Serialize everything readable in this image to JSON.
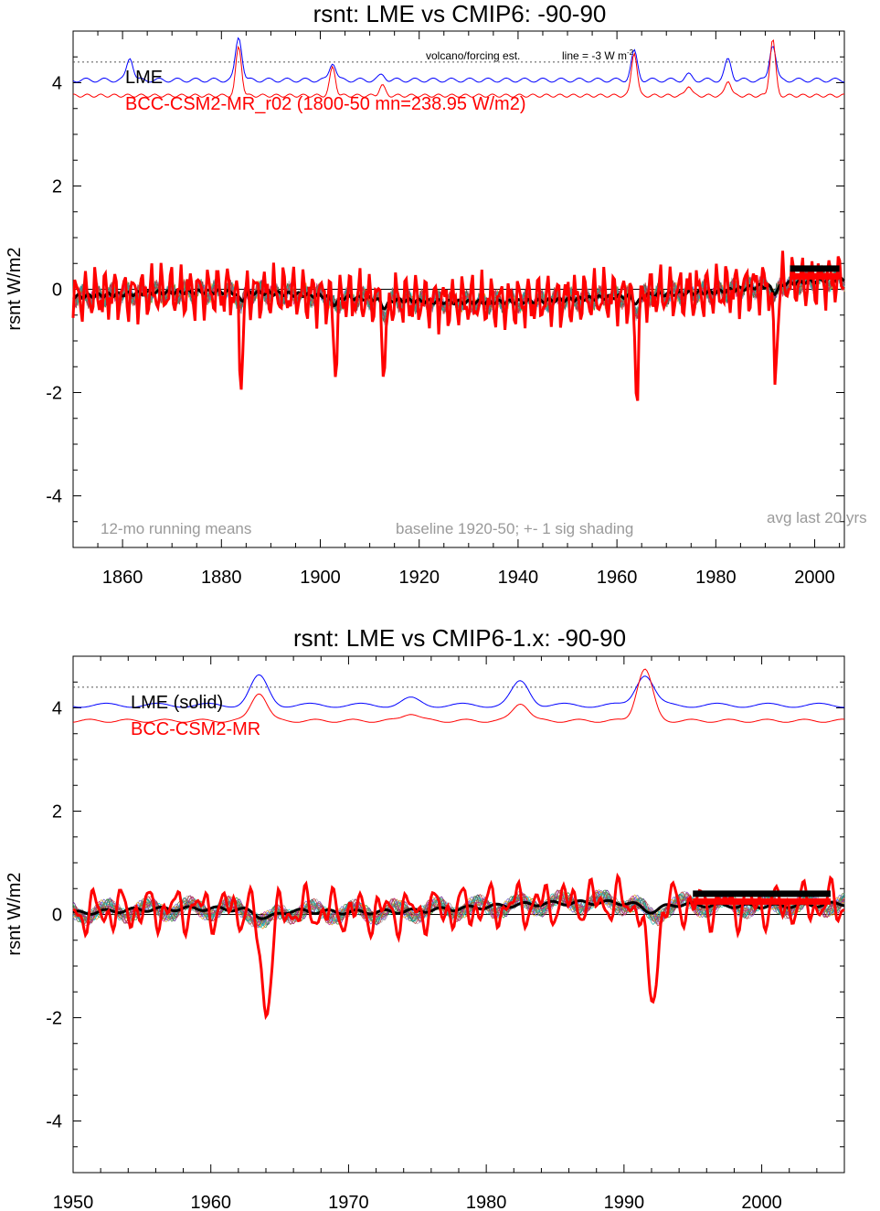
{
  "chart_data": [
    {
      "type": "line",
      "title": "rsnt: LME vs CMIP6: -90-90",
      "ylabel": "rsnt W/m2",
      "xlim": [
        1850,
        2006
      ],
      "ylim": [
        -5,
        5
      ],
      "x_ticks": [
        1860,
        1880,
        1900,
        1920,
        1940,
        1960,
        1980,
        2000
      ],
      "y_ticks": [
        -4,
        -2,
        0,
        2,
        4
      ],
      "legend": [
        {
          "text": "LME",
          "color": "#000000"
        },
        {
          "text": "BCC-CSM2-MR_r02 (1800-50 mn=238.95 W/m2)",
          "color": "#ff0000"
        }
      ],
      "annotations": {
        "volcano": "volcano/forcing est.",
        "line": "line = -3 W m",
        "line_sup": "-2",
        "running_mean": "12-mo running means",
        "baseline": "baseline 1920-50; +- 1 sig shading",
        "avg": "avg last 20 yrs"
      },
      "reference_line_y": 4.4,
      "lme_mean_color": "#000000",
      "model_color": "#ff0000",
      "forcing_lme_color": "#0000ff",
      "forcing_model_color": "#ff0000",
      "volcano_events": [
        {
          "year": 1861.5,
          "lme": 0.45,
          "model": 0.0
        },
        {
          "year": 1883.5,
          "lme": 0.85,
          "model": 0.95
        },
        {
          "year": 1902.5,
          "lme": 0.35,
          "model": 0.55
        },
        {
          "year": 1912.5,
          "lme": 0.1,
          "model": 0.2
        },
        {
          "year": 1963.5,
          "lme": 0.55,
          "model": 0.85
        },
        {
          "year": 1974.5,
          "lme": 0.1,
          "model": 0.2
        },
        {
          "year": 1982.5,
          "lme": 0.4,
          "model": 0.3
        },
        {
          "year": 1991.5,
          "lme": 0.7,
          "model": 1.1
        }
      ],
      "model_dips": [
        {
          "year": 1884,
          "depth": -1.55
        },
        {
          "year": 1903,
          "depth": -1.3
        },
        {
          "year": 1913,
          "depth": -1.35
        },
        {
          "year": 1964,
          "depth": -1.7
        },
        {
          "year": 1992,
          "depth": -1.8
        }
      ],
      "avg_last20": {
        "lme": 0.4,
        "model": 0.25,
        "x_start": 1995,
        "x_end": 2005
      }
    },
    {
      "type": "line",
      "title": "rsnt: LME vs CMIP6-1.x: -90-90",
      "ylabel": "rsnt W/m2",
      "xlim": [
        1950,
        2006
      ],
      "ylim": [
        -5,
        5
      ],
      "x_ticks": [
        1950,
        1960,
        1970,
        1980,
        1990,
        2000
      ],
      "y_ticks": [
        -4,
        -2,
        0,
        2,
        4
      ],
      "legend": [
        {
          "text": "LME (solid)",
          "color": "#000000"
        },
        {
          "text": "BCC-CSM2-MR",
          "color": "#ff0000"
        }
      ],
      "reference_line_y": 4.4,
      "volcano_events": [
        {
          "year": 1963.5,
          "lme": 0.55,
          "model": 0.55
        },
        {
          "year": 1974.5,
          "lme": 0.12,
          "model": 0.15
        },
        {
          "year": 1982.5,
          "lme": 0.45,
          "model": 0.35
        },
        {
          "year": 1991.5,
          "lme": 0.6,
          "model": 1.0
        }
      ],
      "model_dips": [
        {
          "year": 1964,
          "depth": -1.8
        },
        {
          "year": 1992,
          "depth": -1.85
        }
      ],
      "avg_last20": {
        "lme": 0.4,
        "model": 0.25,
        "x_start": 1995,
        "x_end": 2005
      }
    }
  ]
}
